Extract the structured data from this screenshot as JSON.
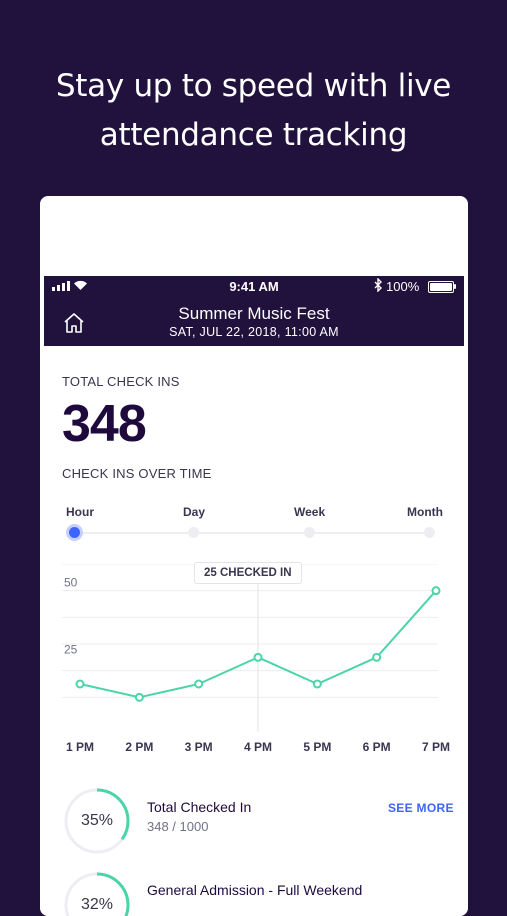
{
  "headline": {
    "line1": "Stay up to speed with live",
    "line2": "attendance tracking"
  },
  "status_bar": {
    "time": "9:41 AM",
    "bluetooth": "bluetooth-icon",
    "battery": "100%"
  },
  "header": {
    "event_title": "Summer Music Fest",
    "event_date": "SAT, JUL 22, 2018, 11:00 AM",
    "home_icon": "home-icon"
  },
  "stats": {
    "total_label": "TOTAL CHECK INS",
    "total_value": "348",
    "over_time_label": "CHECK INS OVER TIME"
  },
  "range_selector": {
    "options": [
      "Hour",
      "Day",
      "Week",
      "Month"
    ],
    "selected": "Hour"
  },
  "colors": {
    "background": "#21113d",
    "line": "#4bd4a8",
    "accent": "#3d64ff",
    "heading": "#1e0a3c"
  },
  "chart_data": {
    "type": "line",
    "x": [
      "1 PM",
      "2 PM",
      "3 PM",
      "4 PM",
      "5 PM",
      "6 PM",
      "7 PM"
    ],
    "values": [
      15,
      10,
      15,
      25,
      15,
      25,
      50
    ],
    "ytick_labels": [
      "25",
      "50"
    ],
    "ylim": [
      0,
      60
    ],
    "grid": true,
    "tooltip": {
      "x": "4 PM",
      "text": "25 CHECKED IN"
    }
  },
  "ticket_types": [
    {
      "percent": "35%",
      "title": "Total Checked In",
      "detail": "348 / 1000",
      "action": "SEE MORE",
      "fraction": 0.35
    },
    {
      "percent": "32%",
      "title": "General Admission - Full Weekend",
      "fraction": 0.32
    }
  ]
}
